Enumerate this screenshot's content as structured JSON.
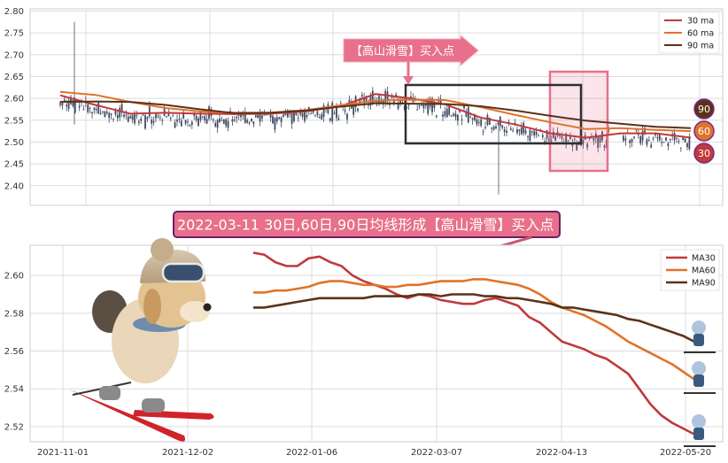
{
  "colors": {
    "ma30": "#c0393b",
    "ma60": "#e0732a",
    "ma90": "#5a3219",
    "candle": "#3f4b63",
    "highlight": "#e8708a",
    "callout_bg": "#e8708a",
    "box": "#2d3036",
    "grid": "#dcdcdc",
    "frame": "#cccccc"
  },
  "chart_data": [
    {
      "type": "line",
      "panel": "top",
      "candles": "dense daily candlesticks around 2.55",
      "y_ticks": [
        "2.80",
        "2.75",
        "2.70",
        "2.65",
        "2.60",
        "2.55",
        "2.50",
        "2.45",
        "2.40"
      ],
      "ylim": [
        2.355,
        2.805
      ],
      "legend": {
        "placement": "top-right",
        "entries": [
          "30 ma",
          "60 ma",
          "90 ma"
        ]
      },
      "series": [
        {
          "name": "30 ma",
          "values": [
            2.607,
            2.585,
            2.565,
            2.567,
            2.565,
            2.564,
            2.565,
            2.57,
            2.582,
            2.61,
            2.6,
            2.586,
            2.556,
            2.54,
            2.52,
            2.51,
            2.52,
            2.52,
            2.51
          ]
        },
        {
          "name": "60 ma",
          "values": [
            2.615,
            2.608,
            2.592,
            2.578,
            2.57,
            2.567,
            2.567,
            2.573,
            2.584,
            2.595,
            2.597,
            2.596,
            2.58,
            2.562,
            2.545,
            2.53,
            2.532,
            2.528,
            2.525
          ]
        },
        {
          "name": "90 ma",
          "values": [
            2.592,
            2.593,
            2.592,
            2.585,
            2.575,
            2.566,
            2.567,
            2.572,
            2.581,
            2.589,
            2.588,
            2.587,
            2.582,
            2.572,
            2.56,
            2.549,
            2.542,
            2.535,
            2.532
          ]
        }
      ],
      "annotation": "【高山滑雪】买入点",
      "end_badges": [
        "90",
        "60",
        "30"
      ]
    },
    {
      "type": "line",
      "panel": "bottom",
      "title": "2022-03-11 30日,60日,90日均线形成【高山滑雪】买入点",
      "x_ticks": [
        "2021-11-01",
        "2021-12-02",
        "2022-01-06",
        "2022-03-07",
        "2022-04-13",
        "2022-05-20"
      ],
      "y_ticks": [
        "2.60",
        "2.58",
        "2.56",
        "2.54",
        "2.52"
      ],
      "ylim": [
        2.512,
        2.616
      ],
      "legend": {
        "placement": "top-right",
        "entries": [
          "MA30",
          "MA60",
          "MA90"
        ]
      },
      "series": [
        {
          "name": "MA30",
          "values": [
            2.612,
            2.611,
            2.607,
            2.605,
            2.605,
            2.609,
            2.61,
            2.607,
            2.605,
            2.6,
            2.597,
            2.595,
            2.593,
            2.59,
            2.588,
            2.59,
            2.589,
            2.587,
            2.586,
            2.585,
            2.585,
            2.587,
            2.588,
            2.586,
            2.584,
            2.578,
            2.575,
            2.57,
            2.565,
            2.563,
            2.561,
            2.558,
            2.556,
            2.552,
            2.548,
            2.54,
            2.532,
            2.526,
            2.522,
            2.519,
            2.516
          ]
        },
        {
          "name": "MA60",
          "values": [
            2.591,
            2.591,
            2.592,
            2.592,
            2.593,
            2.594,
            2.596,
            2.597,
            2.597,
            2.596,
            2.595,
            2.595,
            2.594,
            2.594,
            2.595,
            2.595,
            2.596,
            2.597,
            2.597,
            2.597,
            2.598,
            2.598,
            2.597,
            2.596,
            2.595,
            2.593,
            2.59,
            2.586,
            2.583,
            2.581,
            2.579,
            2.576,
            2.573,
            2.569,
            2.565,
            2.562,
            2.559,
            2.556,
            2.553,
            2.549,
            2.545
          ]
        },
        {
          "name": "MA90",
          "values": [
            2.583,
            2.583,
            2.584,
            2.585,
            2.586,
            2.587,
            2.588,
            2.588,
            2.588,
            2.588,
            2.588,
            2.589,
            2.589,
            2.589,
            2.589,
            2.59,
            2.59,
            2.589,
            2.59,
            2.59,
            2.59,
            2.589,
            2.589,
            2.588,
            2.588,
            2.587,
            2.586,
            2.585,
            2.583,
            2.583,
            2.582,
            2.581,
            2.58,
            2.579,
            2.577,
            2.576,
            2.574,
            2.572,
            2.57,
            2.568,
            2.565
          ]
        }
      ]
    }
  ]
}
